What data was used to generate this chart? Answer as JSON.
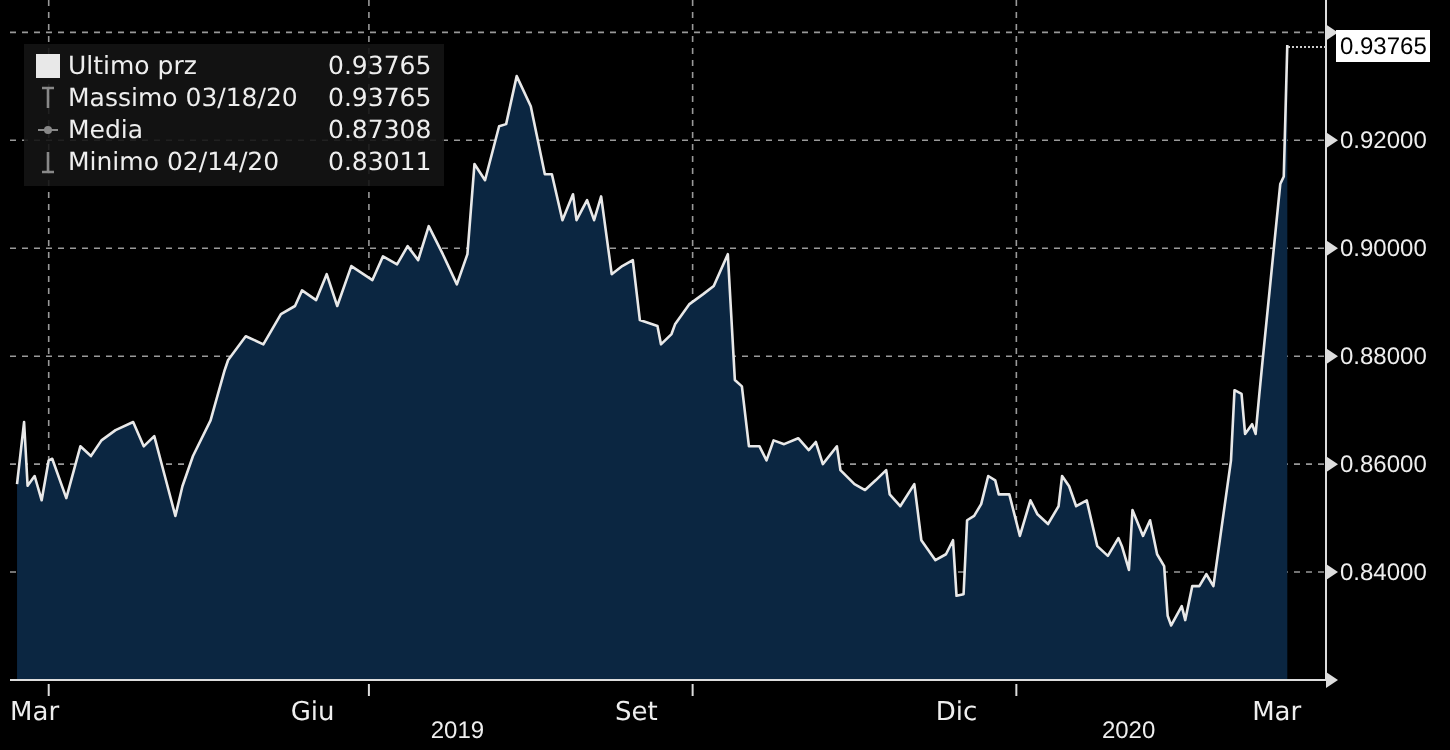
{
  "chart_data": {
    "type": "area",
    "x": [
      "2019-03-23",
      "2019-03-25",
      "2019-03-26",
      "2019-03-28",
      "2019-03-30",
      "2019-04-01",
      "2019-04-02",
      "2019-04-06",
      "2019-04-10",
      "2019-04-13",
      "2019-04-16",
      "2019-04-20",
      "2019-04-25",
      "2019-04-28",
      "2019-05-01",
      "2019-05-04",
      "2019-05-07",
      "2019-05-09",
      "2019-05-12",
      "2019-05-17",
      "2019-05-21",
      "2019-05-22",
      "2019-05-27",
      "2019-06-01",
      "2019-06-06",
      "2019-06-10",
      "2019-06-12",
      "2019-06-16",
      "2019-06-19",
      "2019-06-22",
      "2019-06-26",
      "2019-07-02",
      "2019-07-05",
      "2019-07-09",
      "2019-07-12",
      "2019-07-15",
      "2019-07-18",
      "2019-07-22",
      "2019-07-26",
      "2019-07-29",
      "2019-07-31",
      "2019-08-03",
      "2019-08-07",
      "2019-08-09",
      "2019-08-12",
      "2019-08-16",
      "2019-08-20",
      "2019-08-22",
      "2019-08-25",
      "2019-08-28",
      "2019-08-29",
      "2019-09-01",
      "2019-09-03",
      "2019-09-05",
      "2019-09-08",
      "2019-09-11",
      "2019-09-14",
      "2019-09-16",
      "2019-09-21",
      "2019-09-22",
      "2019-09-25",
      "2019-09-26",
      "2019-09-30",
      "2019-10-04",
      "2019-10-07",
      "2019-10-11",
      "2019-10-13",
      "2019-10-15",
      "2019-10-17",
      "2019-10-20",
      "2019-10-22",
      "2019-10-24",
      "2019-10-27",
      "2019-10-31",
      "2019-11-03",
      "2019-11-05",
      "2019-11-07",
      "2019-11-11",
      "2019-11-12",
      "2019-11-16",
      "2019-11-19",
      "2019-11-22",
      "2019-11-25",
      "2019-11-26",
      "2019-11-29",
      "2019-12-03",
      "2019-12-05",
      "2019-12-09",
      "2019-12-12",
      "2019-12-14",
      "2019-12-15",
      "2019-12-17",
      "2019-12-18",
      "2019-12-20",
      "2019-12-22",
      "2019-12-24",
      "2019-12-26",
      "2019-12-27",
      "2019-12-30",
      "2020-01-02",
      "2020-01-05",
      "2020-01-07",
      "2020-01-10",
      "2020-01-13",
      "2020-01-14",
      "2020-01-16",
      "2020-01-18",
      "2020-01-21",
      "2020-01-24",
      "2020-01-27",
      "2020-01-30",
      "2020-01-31",
      "2020-02-02",
      "2020-02-03",
      "2020-02-06",
      "2020-02-08",
      "2020-02-10",
      "2020-02-12",
      "2020-02-13",
      "2020-02-14",
      "2020-02-17",
      "2020-02-18",
      "2020-02-20",
      "2020-02-22",
      "2020-02-24",
      "2020-02-26",
      "2020-03-02",
      "2020-03-03",
      "2020-03-05",
      "2020-03-06",
      "2020-03-08",
      "2020-03-09",
      "2020-03-10",
      "2020-03-11",
      "2020-03-16",
      "2020-03-17",
      "2020-03-18"
    ],
    "series": [
      {
        "name": "Ultimo prz",
        "color": "#e8e8e8",
        "values": [
          0.8563,
          0.8678,
          0.856,
          0.8578,
          0.8533,
          0.8607,
          0.861,
          0.8537,
          0.8633,
          0.8615,
          0.8644,
          0.8663,
          0.8678,
          0.8633,
          0.8652,
          0.8578,
          0.8504,
          0.8559,
          0.8615,
          0.8681,
          0.8774,
          0.8793,
          0.8837,
          0.8822,
          0.8878,
          0.8893,
          0.8922,
          0.8904,
          0.8952,
          0.8893,
          0.8967,
          0.8941,
          0.8985,
          0.897,
          0.9004,
          0.8978,
          0.9041,
          0.8989,
          0.8933,
          0.8989,
          0.9156,
          0.9126,
          0.9226,
          0.923,
          0.9319,
          0.9263,
          0.9137,
          0.9137,
          0.9052,
          0.91,
          0.9052,
          0.9089,
          0.9052,
          0.9096,
          0.8952,
          0.8967,
          0.8978,
          0.8867,
          0.8856,
          0.8822,
          0.8841,
          0.8859,
          0.8896,
          0.8915,
          0.893,
          0.8989,
          0.8756,
          0.8744,
          0.8633,
          0.8633,
          0.8607,
          0.8644,
          0.8637,
          0.8648,
          0.8626,
          0.8641,
          0.86,
          0.8633,
          0.8589,
          0.8563,
          0.8552,
          0.857,
          0.8589,
          0.8544,
          0.8522,
          0.8563,
          0.8459,
          0.8422,
          0.8433,
          0.8459,
          0.8356,
          0.8359,
          0.8496,
          0.8504,
          0.8526,
          0.8578,
          0.857,
          0.8544,
          0.8544,
          0.8467,
          0.8533,
          0.8507,
          0.8489,
          0.8522,
          0.8578,
          0.8559,
          0.8522,
          0.8533,
          0.8448,
          0.843,
          0.8463,
          0.8448,
          0.8404,
          0.8515,
          0.8467,
          0.8496,
          0.8433,
          0.8411,
          0.8319,
          0.83011,
          0.8337,
          0.8311,
          0.8374,
          0.8374,
          0.8396,
          0.8374,
          0.8607,
          0.8737,
          0.873,
          0.8656,
          0.8674,
          0.8656,
          0.8726,
          0.8793,
          0.9119,
          0.9133,
          0.93765
        ]
      }
    ],
    "xlim": [
      "2019-03-21",
      "2020-03-29"
    ],
    "xticks": [
      {
        "value": "2019-03-28",
        "label": "Mar"
      },
      {
        "value": "2019-04-01",
        "label": null
      },
      {
        "value": "2019-06-15",
        "label": "Giu"
      },
      {
        "value": "2019-07-01",
        "label": null
      },
      {
        "value": "2019-09-15",
        "label": "Set"
      },
      {
        "value": "2019-10-01",
        "label": null
      },
      {
        "value": "2019-12-15",
        "label": "Dic"
      },
      {
        "value": "2020-01-01",
        "label": null
      },
      {
        "value": "2020-03-15",
        "label": "Mar"
      }
    ],
    "ylim": [
      0.82,
      0.946
    ],
    "yticks": [
      {
        "value": 0.82,
        "label": null
      },
      {
        "value": 0.84,
        "label": "0.84000"
      },
      {
        "value": 0.86,
        "label": "0.86000"
      },
      {
        "value": 0.88,
        "label": "0.88000"
      },
      {
        "value": 0.9,
        "label": "0.90000"
      },
      {
        "value": 0.92,
        "label": "0.92000"
      },
      {
        "value": 0.94,
        "label": null
      }
    ],
    "grid": true,
    "legend": "top left",
    "annotations": [
      "0.93765",
      "Massimo 03/18/20 0.93765",
      "Media 0.87308",
      "Minimo 02/14/20 0.83011",
      {
        "text": "0.93765",
        "x": "2020-03-18",
        "y": 0.93765
      },
      "2019",
      "2020"
    ]
  }
}
